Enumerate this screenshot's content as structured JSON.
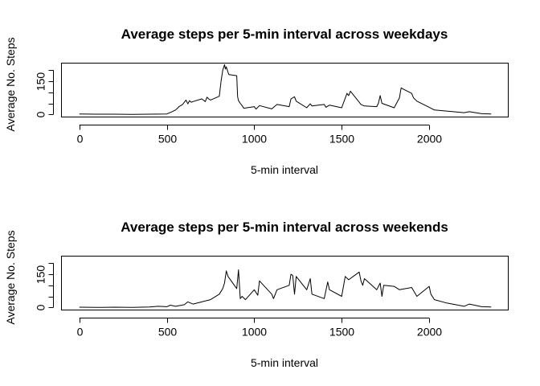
{
  "chart_data": [
    {
      "type": "line",
      "title": "Average steps per 5-min interval across weekdays",
      "xlabel": "5-min interval",
      "ylabel": "Average No. Steps",
      "xlim": [
        -100,
        2450
      ],
      "ylim": [
        -10,
        230
      ],
      "xticks": [
        0,
        500,
        1000,
        1500,
        2000
      ],
      "yticks": [
        0,
        50,
        100,
        150,
        200
      ],
      "ytick_labels": [
        "0",
        "",
        "",
        "150",
        ""
      ],
      "grid": false,
      "series": [
        {
          "x": [
            0,
            100,
            200,
            300,
            400,
            500,
            530,
            550,
            570,
            590,
            600,
            610,
            620,
            630,
            640,
            650,
            700,
            720,
            730,
            740,
            750,
            800,
            810,
            820,
            830,
            835,
            840,
            850,
            855,
            900,
            905,
            910,
            920,
            930,
            940,
            1000,
            1010,
            1030,
            1100,
            1130,
            1200,
            1210,
            1230,
            1240,
            1300,
            1320,
            1330,
            1400,
            1410,
            1430,
            1500,
            1530,
            1540,
            1550,
            1600,
            1610,
            1630,
            1700,
            1710,
            1720,
            1730,
            1800,
            1830,
            1840,
            1850,
            1900,
            1910,
            1930,
            2000,
            2030,
            2100,
            2200,
            2230,
            2300,
            2355
          ],
          "y": [
            2,
            1,
            1,
            0,
            1,
            2,
            12,
            20,
            35,
            45,
            55,
            65,
            48,
            62,
            55,
            58,
            70,
            58,
            78,
            70,
            65,
            82,
            150,
            200,
            225,
            205,
            215,
            190,
            180,
            175,
            80,
            62,
            50,
            40,
            28,
            35,
            24,
            40,
            25,
            45,
            35,
            70,
            80,
            60,
            30,
            48,
            38,
            45,
            32,
            42,
            30,
            95,
            85,
            105,
            55,
            45,
            38,
            35,
            50,
            85,
            50,
            30,
            75,
            120,
            115,
            95,
            75,
            60,
            32,
            20,
            15,
            8,
            12,
            3,
            2
          ]
        }
      ]
    },
    {
      "type": "line",
      "title": "Average steps per 5-min interval across weekends",
      "xlabel": "5-min interval",
      "ylabel": "Average No. Steps",
      "xlim": [
        -100,
        2450
      ],
      "ylim": [
        -10,
        230
      ],
      "xticks": [
        0,
        500,
        1000,
        1500,
        2000
      ],
      "yticks": [
        0,
        50,
        100,
        150,
        200
      ],
      "ytick_labels": [
        "0",
        "",
        "",
        "150",
        ""
      ],
      "grid": false,
      "series": [
        {
          "x": [
            0,
            100,
            200,
            300,
            400,
            450,
            500,
            520,
            550,
            600,
            620,
            650,
            700,
            750,
            800,
            820,
            830,
            840,
            850,
            900,
            910,
            920,
            930,
            950,
            1000,
            1020,
            1030,
            1100,
            1110,
            1130,
            1200,
            1210,
            1220,
            1230,
            1240,
            1300,
            1320,
            1330,
            1400,
            1420,
            1430,
            1500,
            1520,
            1540,
            1600,
            1610,
            1620,
            1630,
            1700,
            1720,
            1730,
            1740,
            1800,
            1830,
            1900,
            1930,
            2000,
            2010,
            2030,
            2100,
            2200,
            2230,
            2300,
            2355
          ],
          "y": [
            1,
            0,
            1,
            0,
            2,
            5,
            3,
            10,
            5,
            12,
            25,
            15,
            25,
            35,
            60,
            85,
            110,
            165,
            140,
            85,
            170,
            40,
            50,
            35,
            80,
            55,
            120,
            60,
            40,
            80,
            100,
            150,
            145,
            60,
            140,
            80,
            130,
            60,
            40,
            115,
            80,
            50,
            140,
            125,
            160,
            120,
            100,
            130,
            80,
            110,
            50,
            100,
            95,
            80,
            90,
            50,
            95,
            60,
            35,
            20,
            5,
            15,
            3,
            2
          ]
        }
      ]
    }
  ]
}
